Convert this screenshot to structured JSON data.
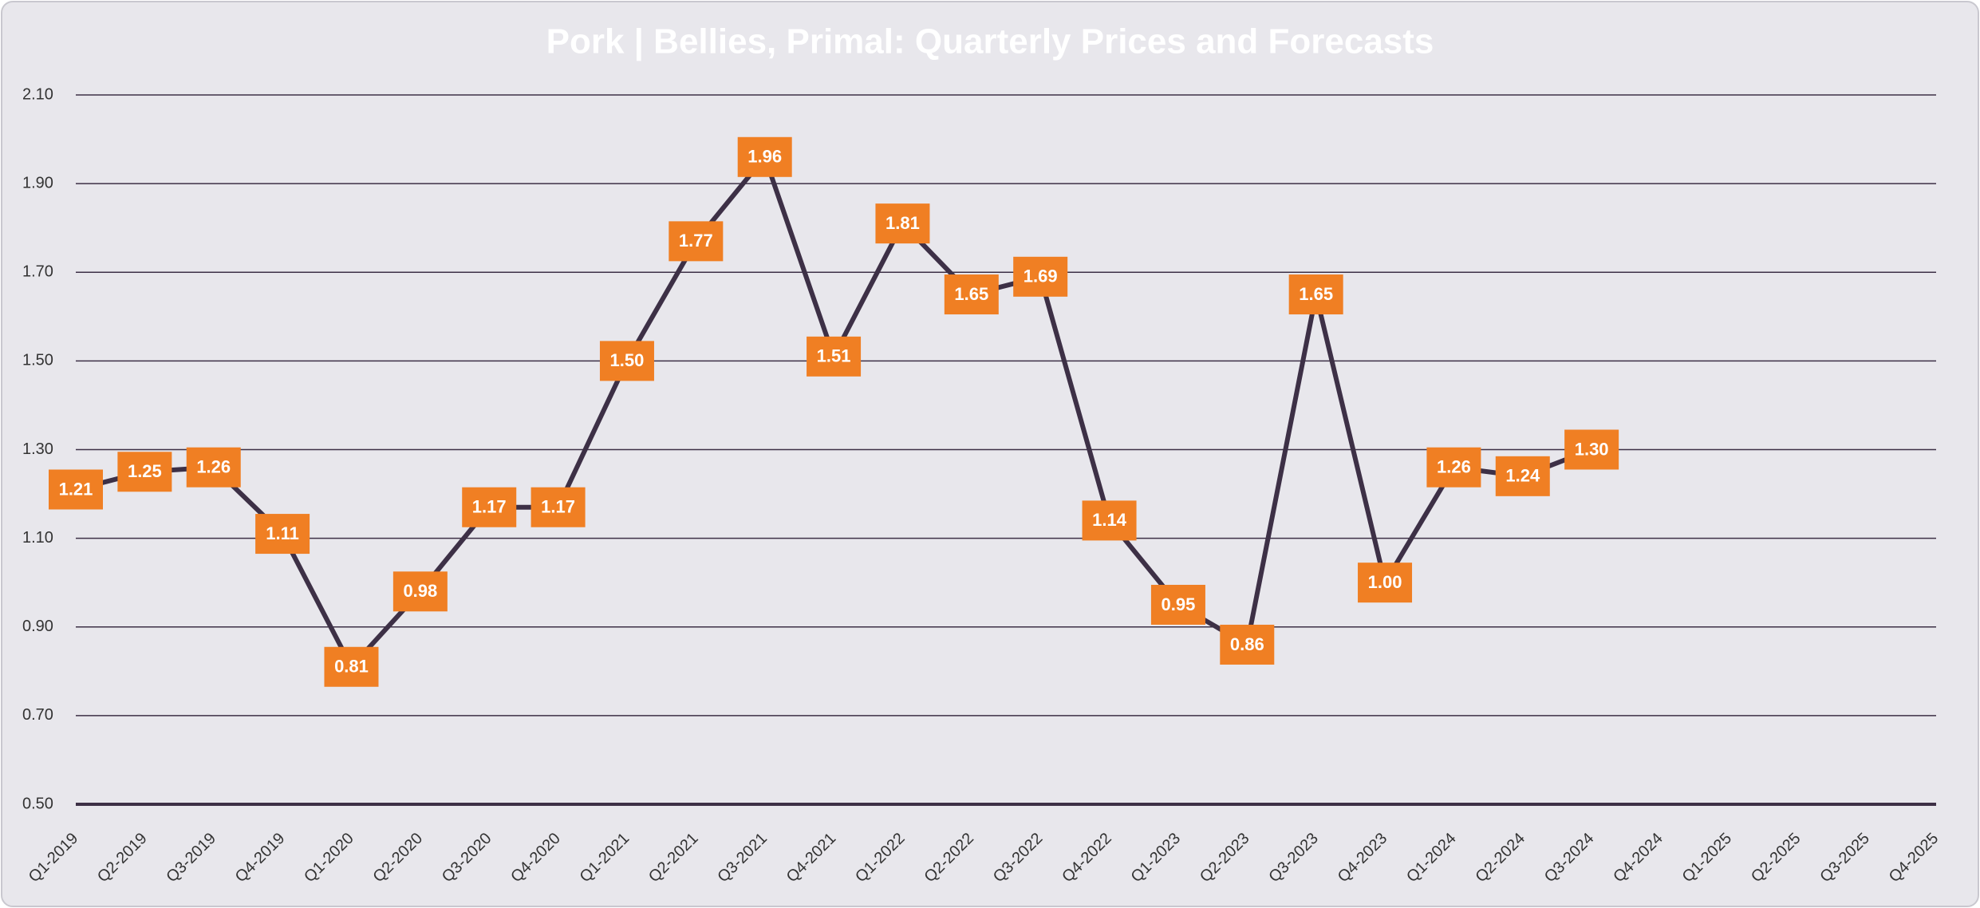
{
  "chart_data": {
    "type": "line",
    "title": "Pork | Bellies, Primal: Quarterly Prices and Forecasts",
    "categories": [
      "Q1-2019",
      "Q2-2019",
      "Q3-2019",
      "Q4-2019",
      "Q1-2020",
      "Q2-2020",
      "Q3-2020",
      "Q4-2020",
      "Q1-2021",
      "Q2-2021",
      "Q3-2021",
      "Q4-2021",
      "Q1-2022",
      "Q2-2022",
      "Q3-2022",
      "Q4-2022",
      "Q1-2023",
      "Q2-2023",
      "Q3-2023",
      "Q4-2023",
      "Q1-2024",
      "Q2-2024",
      "Q3-2024",
      "Q4-2024",
      "Q1-2025",
      "Q2-2025",
      "Q3-2025",
      "Q4-2025"
    ],
    "values": [
      1.21,
      1.25,
      1.26,
      1.11,
      0.81,
      0.98,
      1.17,
      1.17,
      1.5,
      1.77,
      1.96,
      1.51,
      1.81,
      1.65,
      1.69,
      1.14,
      0.95,
      0.86,
      1.65,
      1.0,
      1.26,
      1.24,
      1.3,
      null,
      null,
      null,
      null,
      null
    ],
    "value_labels": [
      "1.21",
      "1.25",
      "1.26",
      "1.11",
      "0.81",
      "0.98",
      "1.17",
      "1.17",
      "1.50",
      "1.77",
      "1.96",
      "1.51",
      "1.81",
      "1.65",
      "1.69",
      "1.14",
      "0.95",
      "0.86",
      "1.65",
      "1.00",
      "1.26",
      "1.24",
      "1.30",
      null,
      null,
      null,
      null,
      null
    ],
    "color": "#3d3046",
    "label_color": "#f07f23",
    "ylim": [
      0.5,
      2.1
    ],
    "yticks": [
      {
        "value": 0.5,
        "label": "0.50"
      },
      {
        "value": 0.7,
        "label": "0.70"
      },
      {
        "value": 0.9,
        "label": "0.90"
      },
      {
        "value": 1.1,
        "label": "1.10"
      },
      {
        "value": 1.3,
        "label": "1.30"
      },
      {
        "value": 1.5,
        "label": "1.50"
      },
      {
        "value": 1.7,
        "label": "1.70"
      },
      {
        "value": 1.9,
        "label": "1.90"
      },
      {
        "value": 2.1,
        "label": "2.10"
      }
    ],
    "grid": true
  }
}
